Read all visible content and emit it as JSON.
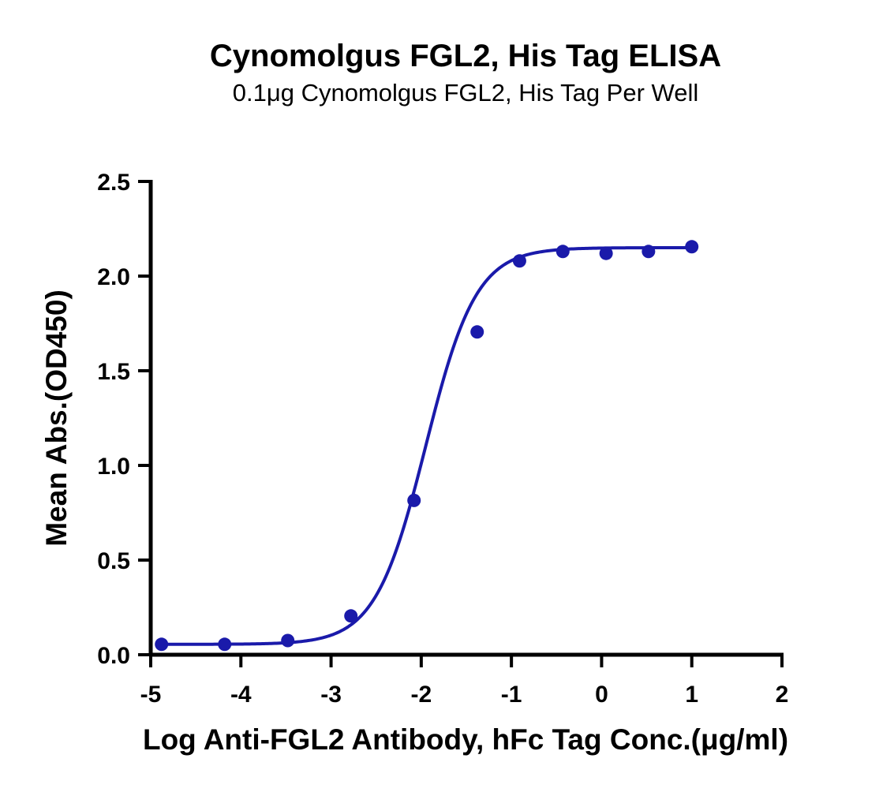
{
  "chart_data": {
    "type": "scatter",
    "title": "Cynomolgus FGL2, His Tag ELISA",
    "subtitle": "0.1μg Cynomolgus FGL2, His Tag Per Well",
    "xlabel": "Log Anti-FGL2 Antibody, hFc Tag Conc.(μg/ml)",
    "ylabel": "Mean Abs.(OD450)",
    "xlim": [
      -5,
      2
    ],
    "ylim": [
      0,
      2.5
    ],
    "xticks": [
      "-5",
      "-4",
      "-3",
      "-2",
      "-1",
      "0",
      "1",
      "2"
    ],
    "yticks": [
      "0.0",
      "0.5",
      "1.0",
      "1.5",
      "2.0",
      "2.5"
    ],
    "grid": false,
    "legend": "none",
    "color": "#1a1aaa",
    "series": [
      {
        "x": [
          -4.88,
          -4.18,
          -3.48,
          -2.78,
          -2.08,
          -1.38,
          -0.91,
          -0.43,
          0.05,
          0.52,
          1.0
        ],
        "y": [
          0.055,
          0.055,
          0.075,
          0.205,
          0.815,
          1.705,
          2.08,
          2.13,
          2.12,
          2.13,
          2.155
        ]
      }
    ],
    "fit_curve": {
      "model": "4PL",
      "bottom": 0.055,
      "top": 2.15,
      "logEC50": -1.95,
      "hill": 1.55,
      "x_range": [
        -4.88,
        1.0
      ]
    }
  }
}
